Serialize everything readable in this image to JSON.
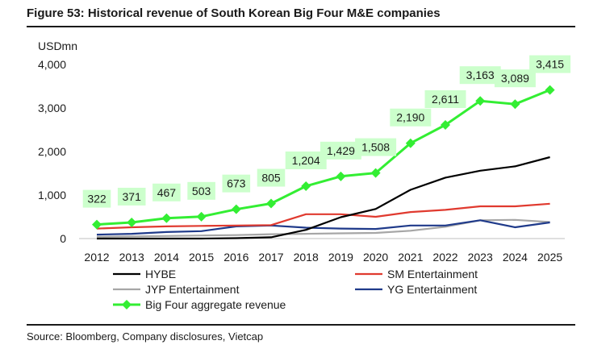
{
  "figure": {
    "title": "Figure 53: Historical revenue of South Korean Big Four M&E companies",
    "source": "Source: Bloomberg, Company disclosures, Vietcap"
  },
  "chart_data": {
    "type": "line",
    "unit_label": "USDmn",
    "x": [
      "2012",
      "2013",
      "2014",
      "2015",
      "2016",
      "2017",
      "2018",
      "2019",
      "2020",
      "2021",
      "2022",
      "2023",
      "2024",
      "2025"
    ],
    "ylim": [
      0,
      4000
    ],
    "yticks": [
      0,
      1000,
      2000,
      3000,
      4000
    ],
    "ytick_labels": [
      "0",
      "1,000",
      "2,000",
      "3,000",
      "4,000"
    ],
    "grid": false,
    "legend_position": "bottom",
    "series": [
      {
        "name": "HYBE",
        "color": "#000000",
        "marker": "none",
        "values": [
          0,
          0,
          0,
          0,
          10,
          30,
          200,
          490,
          680,
          1120,
          1400,
          1560,
          1660,
          1870
        ]
      },
      {
        "name": "SM Entertainment",
        "color": "#e03a2f",
        "marker": "none",
        "values": [
          230,
          260,
          280,
          290,
          300,
          310,
          560,
          560,
          500,
          610,
          660,
          740,
          740,
          800
        ]
      },
      {
        "name": "JYP Entertainment",
        "color": "#a6a6a6",
        "marker": "none",
        "values": [
          40,
          50,
          60,
          70,
          80,
          100,
          110,
          120,
          130,
          180,
          270,
          420,
          430,
          380
        ]
      },
      {
        "name": "YG Entertainment",
        "color": "#1f3a8a",
        "marker": "none",
        "values": [
          90,
          110,
          150,
          170,
          280,
          300,
          250,
          230,
          220,
          300,
          300,
          420,
          260,
          370
        ]
      },
      {
        "name": "Big Four aggregate revenue",
        "color": "#33ee33",
        "marker": "diamond",
        "values": [
          322,
          371,
          467,
          503,
          673,
          805,
          1204,
          1429,
          1508,
          2190,
          2611,
          3163,
          3089,
          3415
        ],
        "data_labels": [
          "322",
          "371",
          "467",
          "503",
          "673",
          "805",
          "1,204",
          "1,429",
          "1,508",
          "2,190",
          "2,611",
          "3,163",
          "3,089",
          "3,415"
        ]
      }
    ],
    "label_background": "#ccffcc"
  }
}
